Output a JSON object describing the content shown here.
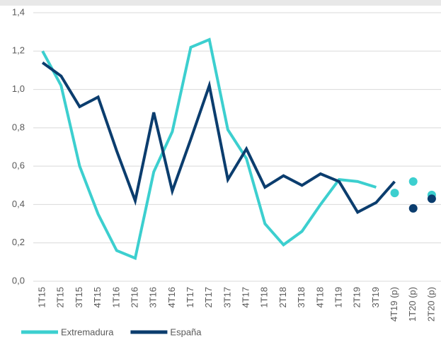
{
  "chart_data": {
    "type": "line",
    "categories": [
      "1T15",
      "2T15",
      "3T15",
      "4T15",
      "1T16",
      "2T16",
      "3T16",
      "4T16",
      "1T17",
      "2T17",
      "3T17",
      "4T17",
      "1T18",
      "2T18",
      "3T18",
      "4T18",
      "1T19",
      "2T19",
      "3T19",
      "4T19 (p)",
      "1T20 (p)",
      "2T20 (p)"
    ],
    "series": [
      {
        "name": "Extremadura",
        "color": "#3ccfcf",
        "values": [
          1.2,
          1.02,
          0.6,
          0.35,
          0.16,
          0.12,
          0.57,
          0.78,
          1.22,
          1.26,
          0.79,
          0.64,
          0.3,
          0.19,
          0.26,
          0.4,
          0.53,
          0.52,
          0.49,
          null,
          null,
          null
        ],
        "projected": [
          null,
          null,
          null,
          null,
          null,
          null,
          null,
          null,
          null,
          null,
          null,
          null,
          null,
          null,
          null,
          null,
          null,
          null,
          null,
          0.46,
          0.52,
          0.45
        ]
      },
      {
        "name": "España",
        "color": "#0b3d6e",
        "values": [
          1.14,
          1.07,
          0.91,
          0.96,
          0.68,
          0.42,
          0.88,
          0.47,
          0.74,
          1.02,
          0.53,
          0.69,
          0.49,
          0.55,
          0.5,
          0.56,
          0.52,
          0.36,
          0.41,
          0.52,
          null,
          null
        ],
        "projected": [
          null,
          null,
          null,
          null,
          null,
          null,
          null,
          null,
          null,
          null,
          null,
          null,
          null,
          null,
          null,
          null,
          null,
          null,
          null,
          null,
          0.38,
          0.43
        ]
      }
    ],
    "ylim": [
      0,
      1.4
    ],
    "yticks": [
      {
        "value": 0,
        "label": "0,0"
      },
      {
        "value": 0.2,
        "label": "0,2"
      },
      {
        "value": 0.4,
        "label": "0,4"
      },
      {
        "value": 0.6,
        "label": "0,6"
      },
      {
        "value": 0.8,
        "label": "0,8"
      },
      {
        "value": 1.0,
        "label": "1,0"
      },
      {
        "value": 1.2,
        "label": "1,2"
      },
      {
        "value": 1.4,
        "label": "1,4"
      }
    ],
    "grid": true
  }
}
